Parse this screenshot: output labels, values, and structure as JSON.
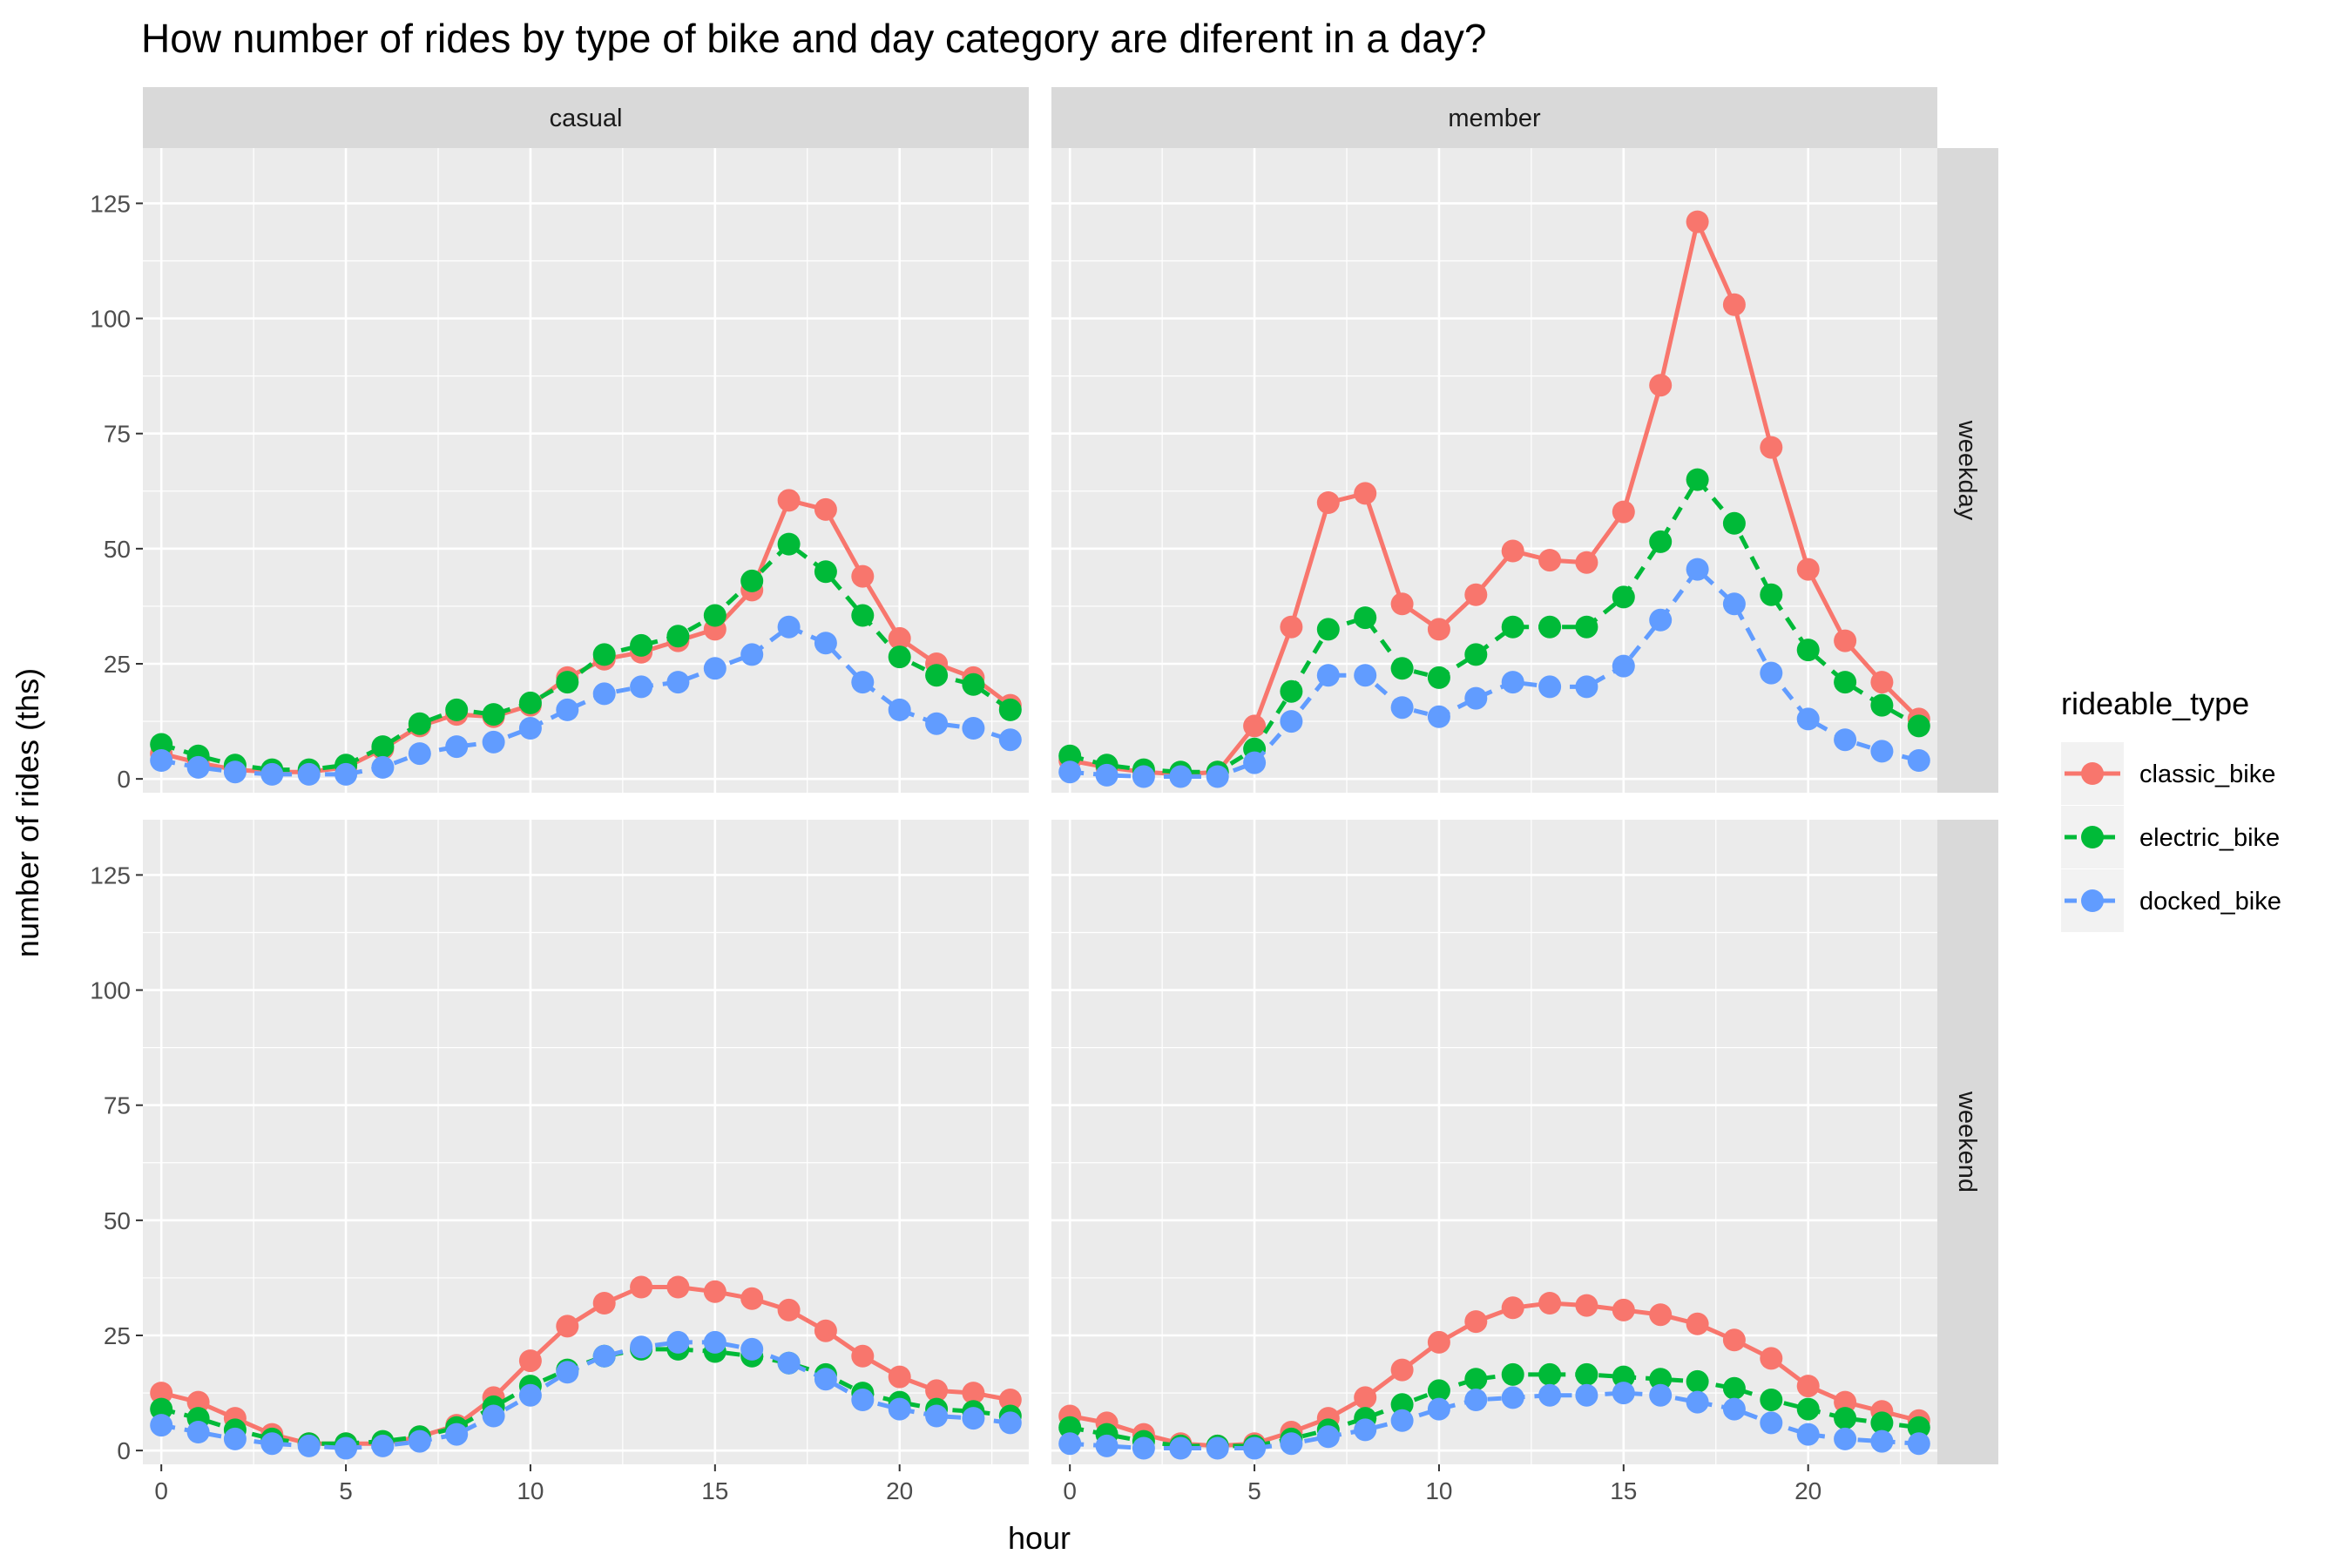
{
  "chart_data": {
    "type": "line",
    "title": "How number of rides by type of bike and day category are diferent in a day?",
    "xlabel": "hour",
    "ylabel": "number of rides (ths)",
    "xlim": [
      -0.5,
      23.5
    ],
    "ylim": [
      -3,
      137
    ],
    "x_ticks": [
      0,
      5,
      10,
      15,
      20
    ],
    "y_ticks": [
      0,
      25,
      50,
      75,
      100,
      125
    ],
    "grid": true,
    "legend_position": "right",
    "legend_title": "rideable_type",
    "x": [
      0,
      1,
      2,
      3,
      4,
      5,
      6,
      7,
      8,
      9,
      10,
      11,
      12,
      13,
      14,
      15,
      16,
      17,
      18,
      19,
      20,
      21,
      22,
      23
    ],
    "series_styles": [
      {
        "name": "classic_bike",
        "color": "#F8766D",
        "dash": "solid"
      },
      {
        "name": "electric_bike",
        "color": "#00BA38",
        "dash": "dashed"
      },
      {
        "name": "docked_bike",
        "color": "#619CFF",
        "dash": "dashed"
      }
    ],
    "facet_columns": [
      "casual",
      "member"
    ],
    "facet_rows": [
      "weekday",
      "weekend"
    ],
    "panels": [
      {
        "col": "casual",
        "row": "weekday",
        "series": [
          {
            "name": "classic_bike",
            "values": [
              5.5,
              3.5,
              2,
              1.5,
              1.5,
              2.5,
              6.5,
              11.5,
              14,
              13.5,
              16,
              22,
              26,
              27.5,
              30,
              32.5,
              41,
              60.5,
              58.5,
              44,
              30.5,
              25,
              22,
              16
            ]
          },
          {
            "name": "electric_bike",
            "values": [
              7.5,
              5,
              3,
              2,
              2,
              3,
              7,
              12,
              15,
              14,
              16.5,
              21,
              27,
              29,
              31,
              35.5,
              43,
              51,
              45,
              35.5,
              26.5,
              22.5,
              20.5,
              15
            ]
          },
          {
            "name": "docked_bike",
            "values": [
              4,
              2.5,
              1.5,
              1,
              1,
              1,
              2.5,
              5.5,
              7,
              8,
              11,
              15,
              18.5,
              20,
              21,
              24,
              27,
              33,
              29.5,
              21,
              15,
              12,
              11,
              8.5
            ]
          }
        ]
      },
      {
        "col": "member",
        "row": "weekday",
        "series": [
          {
            "name": "classic_bike",
            "values": [
              4,
              2.5,
              1.5,
              1,
              1.5,
              11.5,
              33,
              60,
              62,
              38,
              32.5,
              40,
              49.5,
              47.5,
              47,
              58,
              85.5,
              121,
              103,
              72,
              45.5,
              30,
              21,
              13
            ]
          },
          {
            "name": "electric_bike",
            "values": [
              5,
              3,
              2,
              1.5,
              1.5,
              6.5,
              19,
              32.5,
              35,
              24,
              22,
              27,
              33,
              33,
              33,
              39.5,
              51.5,
              65,
              55.5,
              40,
              28,
              21,
              16,
              11.5
            ]
          },
          {
            "name": "docked_bike",
            "values": [
              1.5,
              0.8,
              0.5,
              0.5,
              0.5,
              3.5,
              12.5,
              22.5,
              22.5,
              15.5,
              13.5,
              17.5,
              21,
              20,
              20,
              24.5,
              34.5,
              45.5,
              38,
              23,
              13,
              8.5,
              6,
              4
            ]
          }
        ]
      },
      {
        "col": "casual",
        "row": "weekend",
        "series": [
          {
            "name": "classic_bike",
            "values": [
              12.5,
              10.5,
              7,
              3.5,
              1.5,
              1.5,
              1.5,
              3,
              5.5,
              11.5,
              19.5,
              27,
              32,
              35.5,
              35.5,
              34.5,
              33,
              30.5,
              26,
              20.5,
              16,
              13,
              12.5,
              11
            ]
          },
          {
            "name": "electric_bike",
            "values": [
              9,
              7,
              4.5,
              2.5,
              1.5,
              1.5,
              2,
              3,
              5,
              9.5,
              14,
              17.5,
              20.5,
              22,
              22,
              21.5,
              20.5,
              19,
              16.5,
              12.5,
              10.5,
              9,
              8.5,
              7.5
            ]
          },
          {
            "name": "docked_bike",
            "values": [
              5.5,
              4,
              2.5,
              1.5,
              1,
              0.5,
              1,
              2,
              3.5,
              7.5,
              12,
              17,
              20.5,
              22.5,
              23.5,
              23.5,
              22,
              19,
              15.5,
              11,
              9,
              7.5,
              7,
              6
            ]
          }
        ]
      },
      {
        "col": "member",
        "row": "weekend",
        "series": [
          {
            "name": "classic_bike",
            "values": [
              7.5,
              6,
              3.5,
              1.5,
              1,
              1.5,
              4,
              7,
              11.5,
              17.5,
              23.5,
              28,
              31,
              32,
              31.5,
              30.5,
              29.5,
              27.5,
              24,
              20,
              14,
              10.5,
              8.5,
              6.5
            ]
          },
          {
            "name": "electric_bike",
            "values": [
              5,
              3.5,
              2,
              1,
              1,
              1,
              2.5,
              4.5,
              7,
              10,
              13,
              15.5,
              16.5,
              16.5,
              16.5,
              16,
              15.5,
              15,
              13.5,
              11,
              9,
              7,
              6,
              5
            ]
          },
          {
            "name": "docked_bike",
            "values": [
              1.5,
              1,
              0.5,
              0.5,
              0.5,
              0.5,
              1.5,
              3,
              4.5,
              6.5,
              9,
              11,
              11.5,
              12,
              12,
              12.5,
              12,
              10.5,
              9,
              6,
              3.5,
              2.5,
              2,
              1.5
            ]
          }
        ]
      }
    ]
  }
}
